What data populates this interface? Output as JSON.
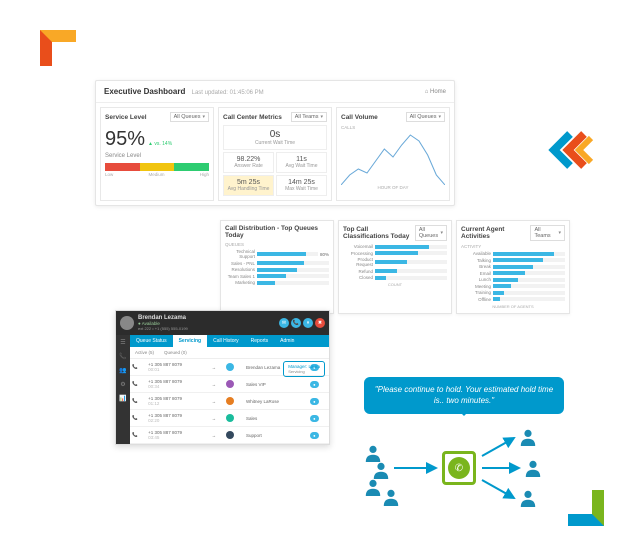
{
  "dashboard": {
    "title": "Executive Dashboard",
    "updated": "Last updated: 01:45:06 PM",
    "home": "Home",
    "service_level": {
      "title": "Service Level",
      "select": "All Queues",
      "pct": "95%",
      "delta": "▲ vs. 14%",
      "label": "Service Level",
      "low": "Low",
      "med": "Medium",
      "high": "High",
      "meter_colors": [
        "#e74c3c",
        "#f1c40f",
        "#2ecc71"
      ]
    },
    "cc_metrics": {
      "title": "Call Center Metrics",
      "select": "All Teams",
      "wait_big": "0s",
      "wait_lbl": "Current Wait Time",
      "ans_rate": "98.22%",
      "ans_lbl": "Answer Rate",
      "avg_wait": "11s",
      "avg_wait_lbl": "Avg Wait Time",
      "handle": "5m 25s",
      "handle_lbl": "Avg Handling Time",
      "max_wait": "14m 25s",
      "max_wait_lbl": "Max Wait Time"
    },
    "volume": {
      "title": "Call Volume",
      "select": "All Queues",
      "ylabel": "CALLS",
      "xlabel": "HOUR OF DAY",
      "line_color": "#6aa9d8",
      "points": [
        0,
        5,
        8,
        6,
        12,
        18,
        14,
        20,
        25,
        22,
        15,
        5,
        0
      ]
    }
  },
  "bar_cards": [
    {
      "title": "Call Distribution - Top Queues Today",
      "section": "QUEUES",
      "badge": "80%",
      "items": [
        {
          "label": "Technical Support",
          "pct": 80
        },
        {
          "label": "Sales - PNL",
          "pct": 65
        },
        {
          "label": "Resolutions",
          "pct": 55
        },
        {
          "label": "Team Sales 1",
          "pct": 40
        },
        {
          "label": "Marketing",
          "pct": 25
        }
      ]
    },
    {
      "title": "Top Call Classifications Today",
      "select": "All Queues",
      "items": [
        {
          "label": "Voicemail",
          "pct": 75
        },
        {
          "label": "Processing",
          "pct": 60
        },
        {
          "label": "Product Request",
          "pct": 45
        },
        {
          "label": "Refund",
          "pct": 30
        },
        {
          "label": "Closed",
          "pct": 15
        }
      ],
      "foot": "COUNT"
    },
    {
      "title": "Current Agent Activities",
      "select": "All Teams",
      "section": "ACTIVITY",
      "items": [
        {
          "label": "Available",
          "pct": 85
        },
        {
          "label": "Talking",
          "pct": 70
        },
        {
          "label": "Break",
          "pct": 55
        },
        {
          "label": "Email",
          "pct": 45
        },
        {
          "label": "Lunch",
          "pct": 35
        },
        {
          "label": "Meeting",
          "pct": 25
        },
        {
          "label": "Training",
          "pct": 15
        },
        {
          "label": "Offline",
          "pct": 10
        }
      ],
      "foot": "NUMBER OF AGENTS"
    }
  ],
  "agent": {
    "name": "Brendan Lezama",
    "status": "● Available",
    "phone": "ext 222 • +1 (555) 555-0199",
    "tabs": [
      "Queue Status",
      "Servicing",
      "Call History",
      "Reports",
      "Admin"
    ],
    "active_tab": 1,
    "subtabs": [
      "Active (5)",
      "Queued (0)"
    ],
    "manager": "Manager: Laura",
    "manager_sub": "Servicing",
    "rows": [
      {
        "num": "+1 305 887 8079",
        "time": "00:01",
        "who": "Brendan Lezama",
        "col": "#3bb7e4"
      },
      {
        "num": "+1 305 887 8079",
        "time": "00:34",
        "who": "Sales VIP",
        "col": "#9b59b6"
      },
      {
        "num": "+1 305 887 8079",
        "time": "01:12",
        "who": "Whitney LaRose",
        "col": "#e67e22"
      },
      {
        "num": "+1 305 887 8079",
        "time": "02:20",
        "who": "Sales",
        "col": "#1abc9c"
      },
      {
        "num": "+1 305 887 8079",
        "time": "03:45",
        "who": "Support",
        "col": "#34495e"
      }
    ],
    "ctrl_colors": [
      "#3bb7e4",
      "#3bb7e4",
      "#3bb7e4",
      "#e74c3c"
    ]
  },
  "speech": {
    "text": "\"Please continue to hold. Your estimated hold time is.. two minutes.\"",
    "bubble_color": "#0099cc",
    "hub_color": "#7ab51d",
    "person_color": "#1a8bb3"
  }
}
